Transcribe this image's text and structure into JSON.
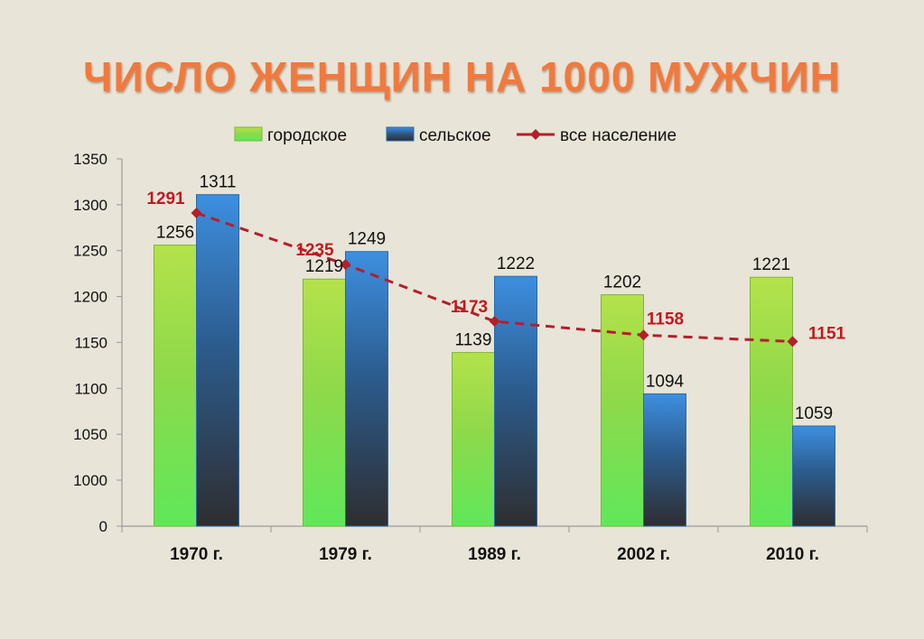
{
  "chart_data": {
    "type": "bar",
    "title": "ЧИСЛО ЖЕНЩИН НА 1000 МУЖЧИН",
    "categories": [
      "1970 г.",
      "1979 г.",
      "1989 г.",
      "2002 г.",
      "2010 г."
    ],
    "series": [
      {
        "name": "городское",
        "kind": "bar",
        "values": [
          1256,
          1219,
          1139,
          1202,
          1221
        ],
        "color": "#a6e042"
      },
      {
        "name": "сельское",
        "kind": "bar",
        "values": [
          1311,
          1249,
          1222,
          1094,
          1059
        ],
        "color": "#3d8fe0"
      },
      {
        "name": "все население",
        "kind": "line",
        "values": [
          1291,
          1235,
          1173,
          1158,
          1151
        ],
        "color": "#b3202a"
      }
    ],
    "y_ticks": [
      "1350",
      "1300",
      "1250",
      "1200",
      "1150",
      "1100",
      "1050",
      "1000",
      "0"
    ],
    "ylim": [
      1000,
      1350
    ],
    "y_axis_break": true,
    "grid": false,
    "legend_position": "top"
  }
}
